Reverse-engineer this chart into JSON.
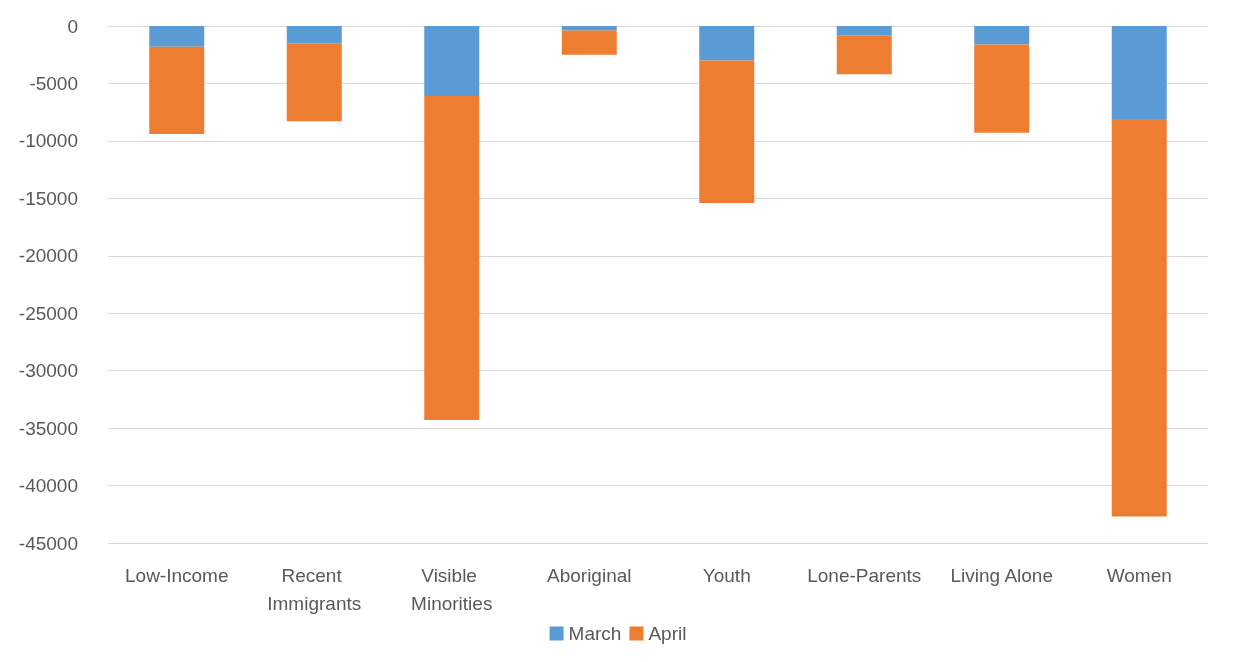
{
  "chart_data": {
    "type": "bar",
    "stacked": true,
    "categories": [
      "Low-Income",
      "Recent Immigrants",
      "Visible Minorities",
      "Aboriginal",
      "Youth",
      "Lone-Parents",
      "Living Alone",
      "Women"
    ],
    "series": [
      {
        "name": "March",
        "color": "#5b9bd5",
        "values": [
          -1800,
          -1500,
          -6100,
          -400,
          -3000,
          -800,
          -1600,
          -8100
        ]
      },
      {
        "name": "April",
        "color": "#ed7d31",
        "values": [
          -7600,
          -6800,
          -28200,
          -2100,
          -12400,
          -3400,
          -7700,
          -34600
        ]
      }
    ],
    "ylim": [
      -45000,
      0
    ],
    "yticks": [
      -45000,
      -40000,
      -35000,
      -30000,
      -25000,
      -20000,
      -15000,
      -10000,
      -5000,
      0
    ],
    "grid": "y",
    "legend": "bottom"
  }
}
